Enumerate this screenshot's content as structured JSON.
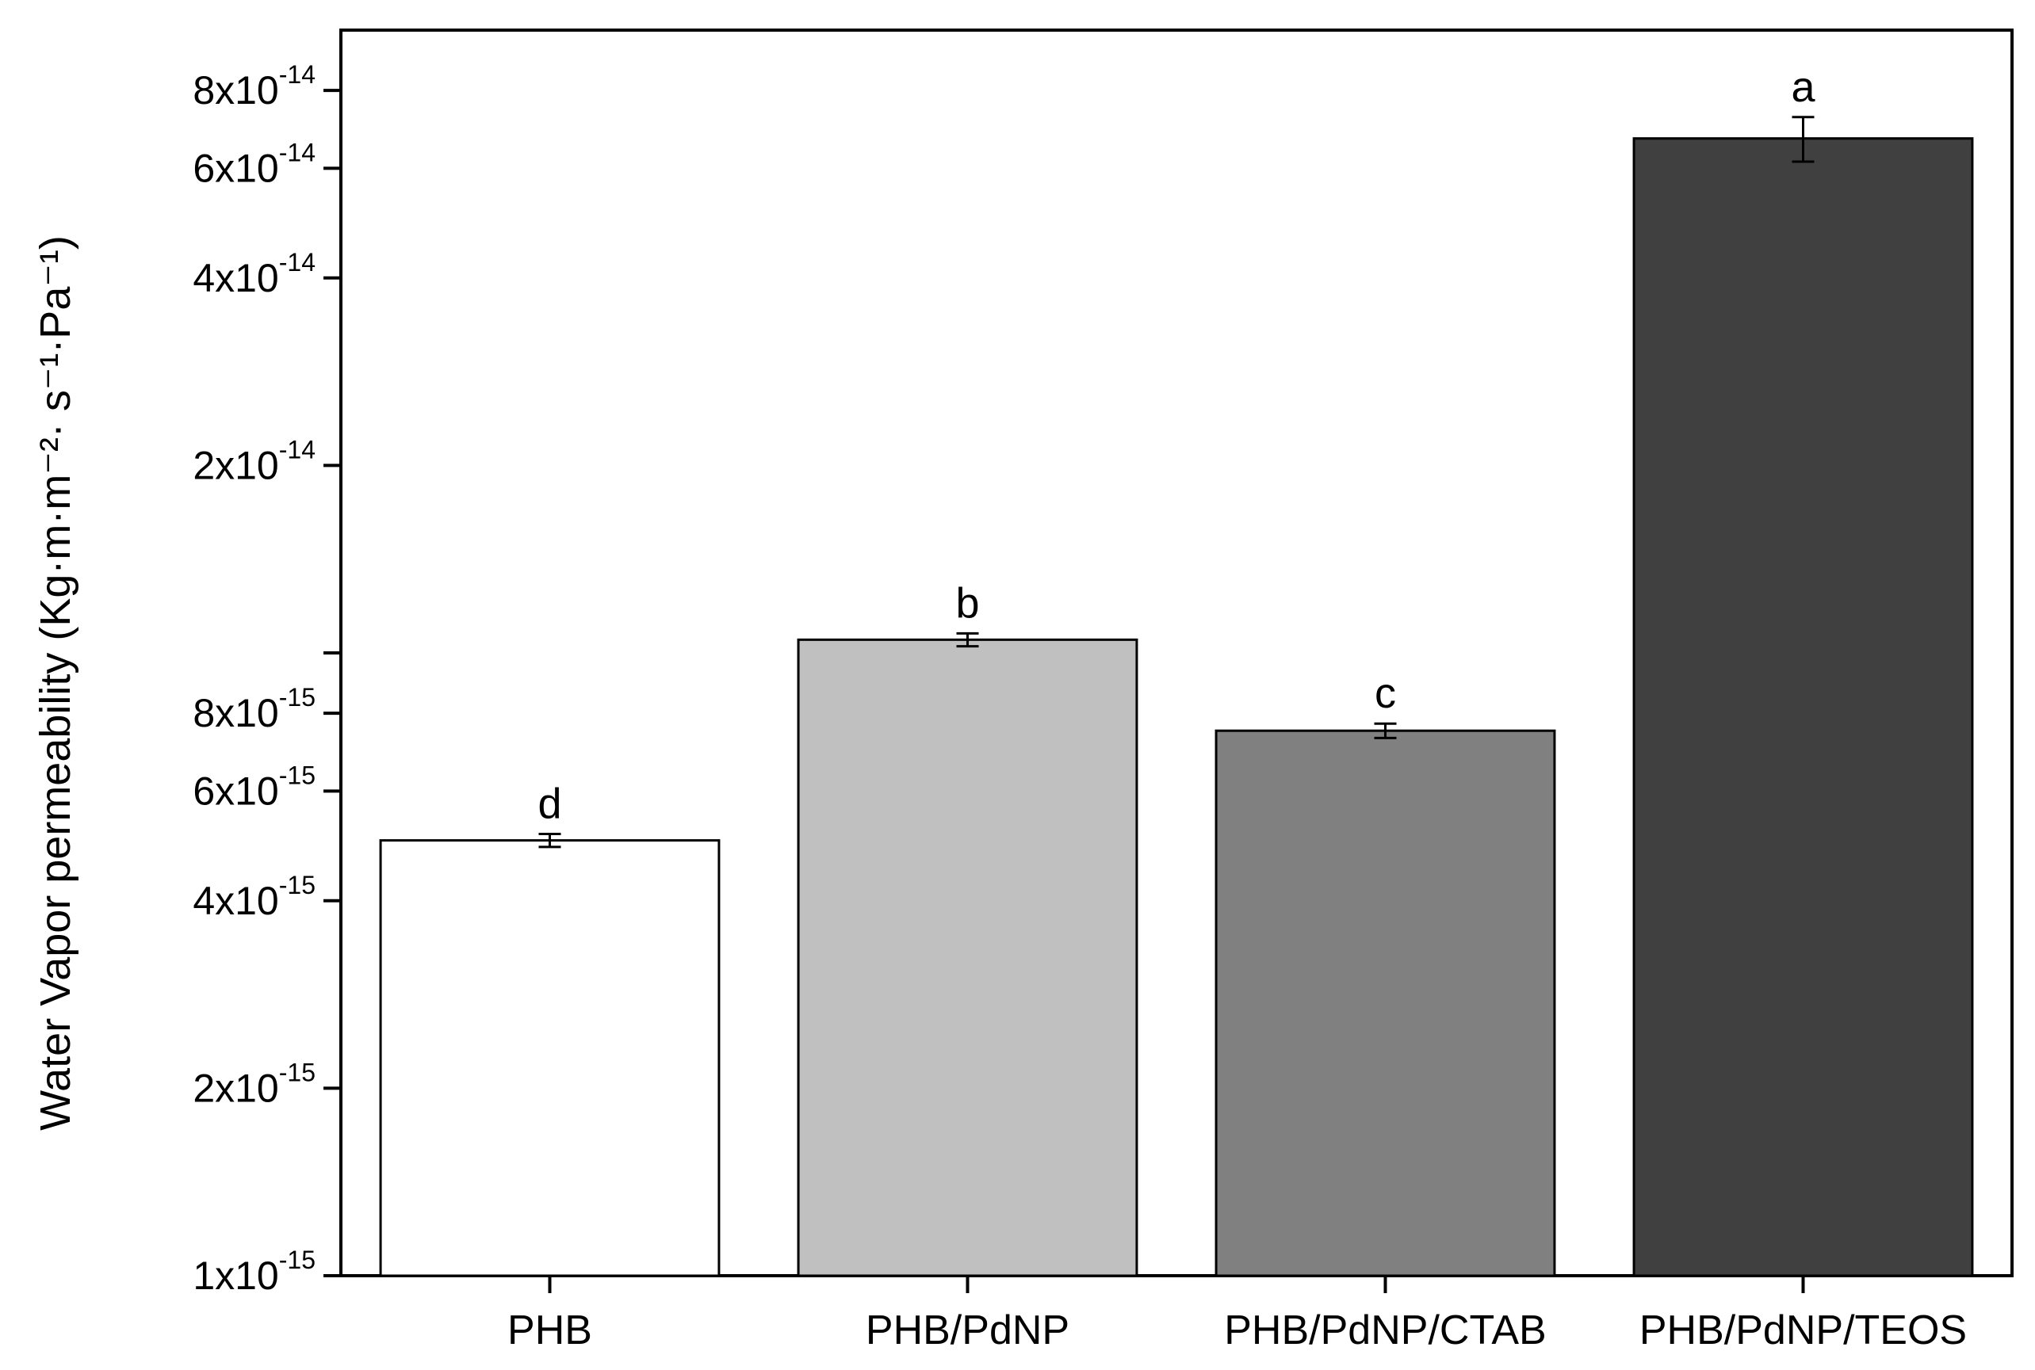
{
  "chart_data": {
    "type": "bar",
    "ylabel": "Water Vapor permeability (Kg·m·m⁻²· s⁻¹·Pa⁻¹)",
    "yscale": "log",
    "ylim": [
      1e-15,
      1e-13
    ],
    "yticks": [
      1e-15,
      2e-15,
      4e-15,
      6e-15,
      8e-15,
      1e-14,
      2e-14,
      4e-14,
      6e-14,
      8e-14
    ],
    "ytick_labels": [
      {
        "mantissa": "1x10",
        "exp": "-15"
      },
      {
        "mantissa": "2x10",
        "exp": "-15"
      },
      {
        "mantissa": "4x10",
        "exp": "-15"
      },
      {
        "mantissa": "6x10",
        "exp": "-15"
      },
      {
        "mantissa": "8x10",
        "exp": "-15"
      },
      {
        "mantissa": "",
        "exp": ""
      },
      {
        "mantissa": "2x10",
        "exp": "-14"
      },
      {
        "mantissa": "4x10",
        "exp": "-14"
      },
      {
        "mantissa": "6x10",
        "exp": "-14"
      },
      {
        "mantissa": "8x10",
        "exp": "-14"
      }
    ],
    "categories": [
      "PHB",
      "PHB/PdNP",
      "PHB/PdNP/CTAB",
      "PHB/PdNP/TEOS"
    ],
    "values": [
      5e-15,
      1.05e-14,
      7.5e-15,
      6.7e-14
    ],
    "errors": [
      1.2e-16,
      2.5e-16,
      2e-16,
      5.5e-15
    ],
    "significance": [
      "d",
      "b",
      "c",
      "a"
    ],
    "colors": [
      "#ffffff",
      "#c0c0c0",
      "#808080",
      "#404040"
    ],
    "grid": false
  }
}
